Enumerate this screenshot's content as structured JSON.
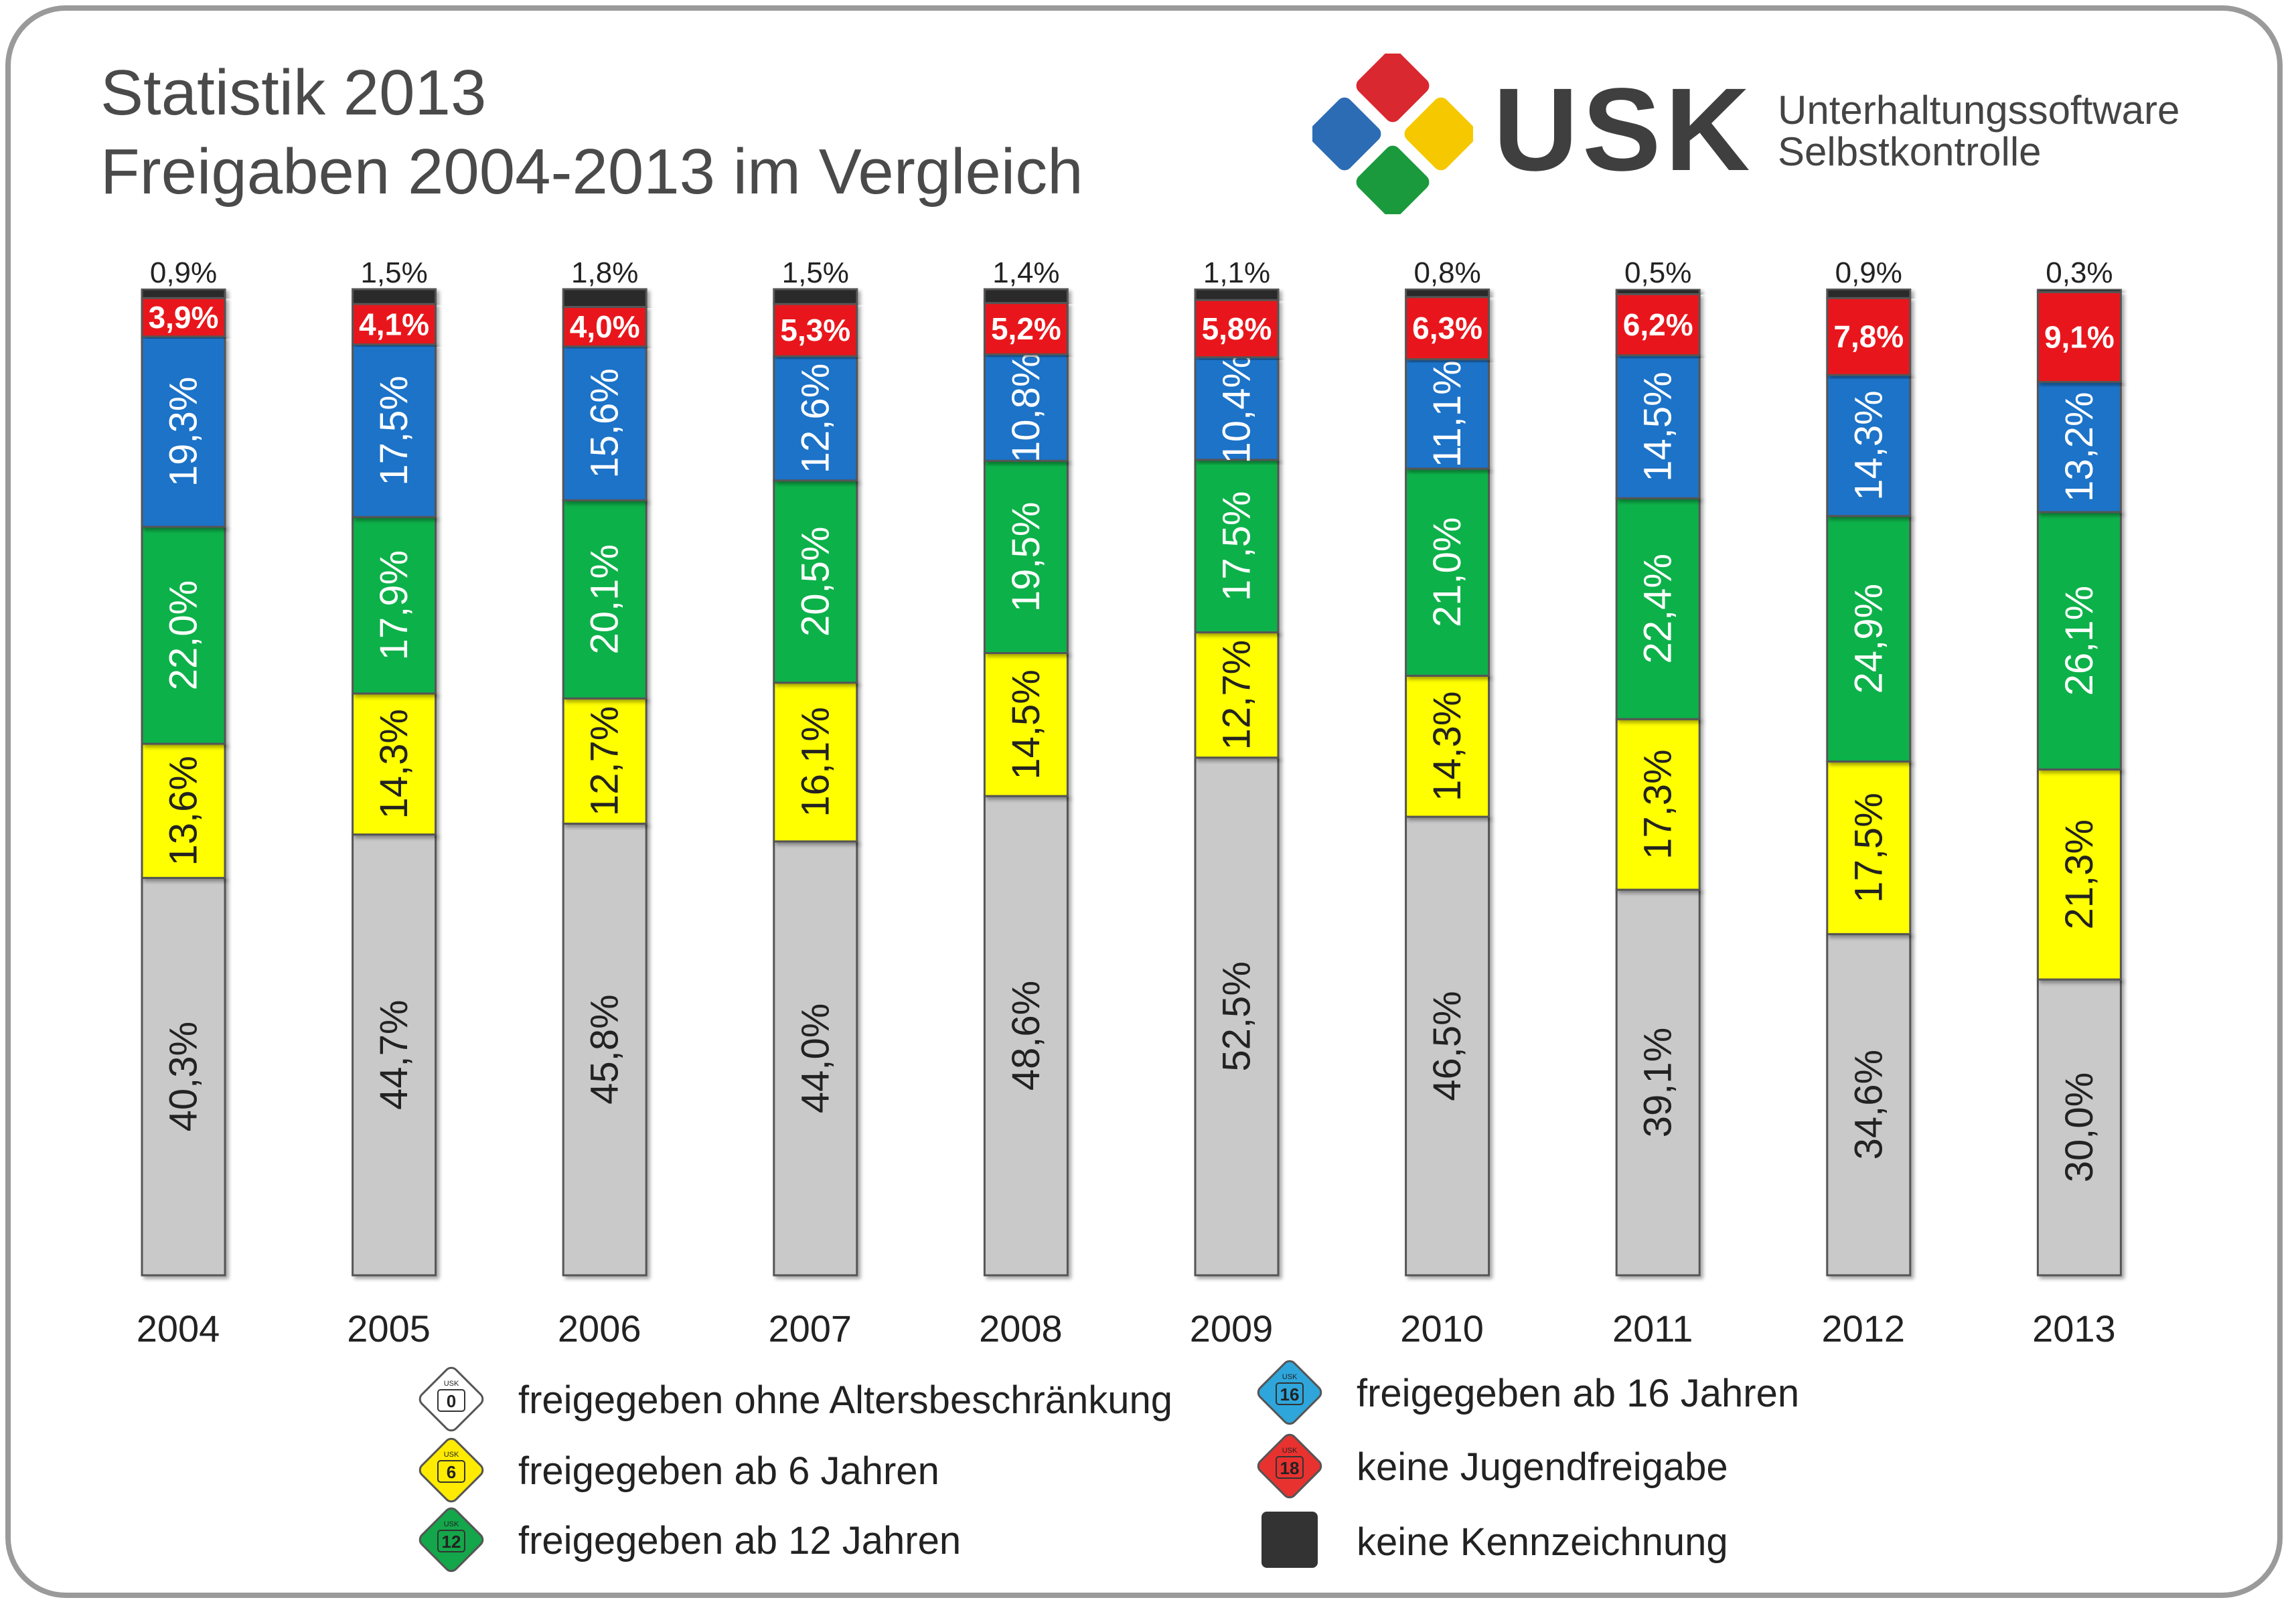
{
  "title": {
    "line1": "Statistik 2013",
    "line2": "Freigaben 2004-2013 im Vergleich"
  },
  "logo": {
    "name": "USK",
    "subtitle_line1": "Unterhaltungssoftware",
    "subtitle_line2": "Selbstkontrolle",
    "colors": [
      "#d9282f",
      "#f5c800",
      "#1b9a3d",
      "#2c6cb5"
    ]
  },
  "chart_data": {
    "type": "bar",
    "stacked": true,
    "orientation": "vertical",
    "categories": [
      "2004",
      "2005",
      "2006",
      "2007",
      "2008",
      "2009",
      "2010",
      "2011",
      "2012",
      "2013"
    ],
    "series": [
      {
        "name": "freigegeben ohne Altersbeschränkung",
        "color": "#c9c9c9",
        "label_color": "#222222",
        "values": [
          40.3,
          44.7,
          45.8,
          44.0,
          48.6,
          52.5,
          46.5,
          39.1,
          34.6,
          30.0
        ],
        "labels": [
          "40,3%",
          "44,7%",
          "45,8%",
          "44,0%",
          "48,6%",
          "52,5%",
          "46,5%",
          "39,1%",
          "34,6%",
          "30,0%"
        ]
      },
      {
        "name": "freigegeben ab 6 Jahren",
        "color": "#ffff00",
        "label_color": "#222222",
        "values": [
          13.6,
          14.3,
          12.7,
          16.1,
          14.5,
          12.7,
          14.3,
          17.3,
          17.5,
          21.3
        ],
        "labels": [
          "13,6%",
          "14,3%",
          "12,7%",
          "16,1%",
          "14,5%",
          "12,7%",
          "14,3%",
          "17,3%",
          "17,5%",
          "21,3%"
        ]
      },
      {
        "name": "freigegeben ab 12 Jahren",
        "color": "#0ab14a",
        "label_color": "#ffffff",
        "values": [
          22.0,
          17.9,
          20.1,
          20.5,
          19.5,
          17.5,
          21.0,
          22.4,
          24.9,
          26.1
        ],
        "labels": [
          "22,0%",
          "17,9%",
          "20,1%",
          "20,5%",
          "19,5%",
          "17,5%",
          "21,0%",
          "22,4%",
          "24,9%",
          "26,1%"
        ]
      },
      {
        "name": "freigegeben ab 16 Jahren",
        "color": "#1e73c8",
        "label_color": "#ffffff",
        "values": [
          19.3,
          17.5,
          15.6,
          12.6,
          10.8,
          10.4,
          11.1,
          14.5,
          14.3,
          13.2
        ],
        "labels": [
          "19,3%",
          "17,5%",
          "15,6%",
          "12,6%",
          "10,8%",
          "10,4%",
          "11,1%",
          "14,5%",
          "14,3%",
          "13,2%"
        ]
      },
      {
        "name": "keine Jugendfreigabe",
        "color": "#e8141a",
        "label_color": "#ffffff",
        "values": [
          3.9,
          4.1,
          4.0,
          5.3,
          5.2,
          5.8,
          6.3,
          6.2,
          7.8,
          9.1
        ],
        "labels": [
          "3,9%",
          "4,1%",
          "4,0%",
          "5,3%",
          "5,2%",
          "5,8%",
          "6,3%",
          "6,2%",
          "7,8%",
          "9,1%"
        ]
      },
      {
        "name": "keine Kennzeichnung",
        "color": "#2a2a2a",
        "label_color": "#222222",
        "values": [
          0.9,
          1.5,
          1.8,
          1.5,
          1.4,
          1.1,
          0.8,
          0.5,
          0.9,
          0.3
        ],
        "labels": [
          "0,9%",
          "1,5%",
          "1,8%",
          "1,5%",
          "1,4%",
          "1,1%",
          "0,8%",
          "0,5%",
          "0,9%",
          "0,3%"
        ]
      }
    ],
    "ylim": [
      0,
      100
    ],
    "grid": false,
    "legend_position": "bottom"
  },
  "legend": [
    {
      "label": "freigegeben ohne Altersbeschränkung",
      "badge": "0",
      "badge_top": "USK",
      "color": "#ffffff",
      "text_color": "#222222",
      "shape": "diamond"
    },
    {
      "label": "freigegeben ab 6 Jahren",
      "badge": "6",
      "badge_top": "USK",
      "color": "#ffeb00",
      "text_color": "#222222",
      "shape": "diamond"
    },
    {
      "label": "freigegeben ab 12 Jahren",
      "badge": "12",
      "badge_top": "USK",
      "color": "#14a64a",
      "text_color": "#222222",
      "shape": "diamond"
    },
    {
      "label": "freigegeben ab 16 Jahren",
      "badge": "16",
      "badge_top": "USK",
      "color": "#2ea6dc",
      "text_color": "#222222",
      "shape": "diamond"
    },
    {
      "label": "keine Jugendfreigabe",
      "badge": "18",
      "badge_top": "USK",
      "color": "#e8322f",
      "text_color": "#222222",
      "shape": "diamond"
    },
    {
      "label": "keine Kennzeichnung",
      "badge": "",
      "badge_top": "",
      "color": "#333333",
      "text_color": "#ffffff",
      "shape": "square"
    }
  ]
}
